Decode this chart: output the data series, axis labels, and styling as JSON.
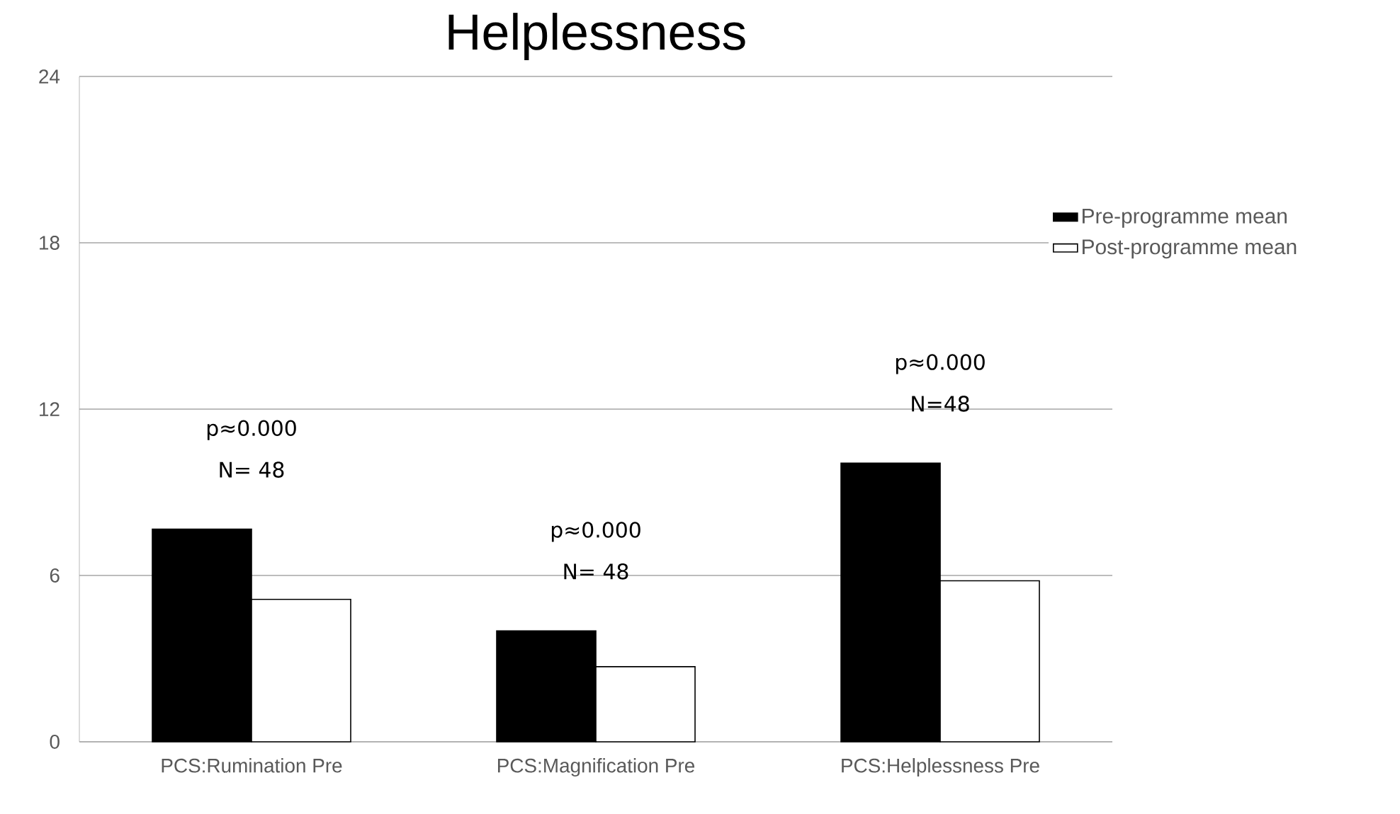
{
  "chart_data": {
    "type": "bar",
    "title": "Helplessness",
    "categories": [
      "PCS:Rumination Pre",
      "PCS:Magnification Pre",
      "PCS:Helplessness Pre"
    ],
    "series": [
      {
        "name": "Pre-programme mean",
        "color": "#000000",
        "values": [
          7.67,
          4.0,
          10.05
        ]
      },
      {
        "name": "Post-programme mean",
        "color": "#ffffff",
        "values": [
          5.14,
          2.71,
          5.81
        ]
      }
    ],
    "ylim": [
      0,
      24
    ],
    "yticks": [
      0,
      6,
      12,
      18,
      24
    ],
    "grid": "y",
    "legend": "right",
    "annotations": [
      "p≈0.000",
      "N= 48",
      "p≈0.000",
      "N= 48",
      "p≈0.000",
      "N=48"
    ]
  }
}
